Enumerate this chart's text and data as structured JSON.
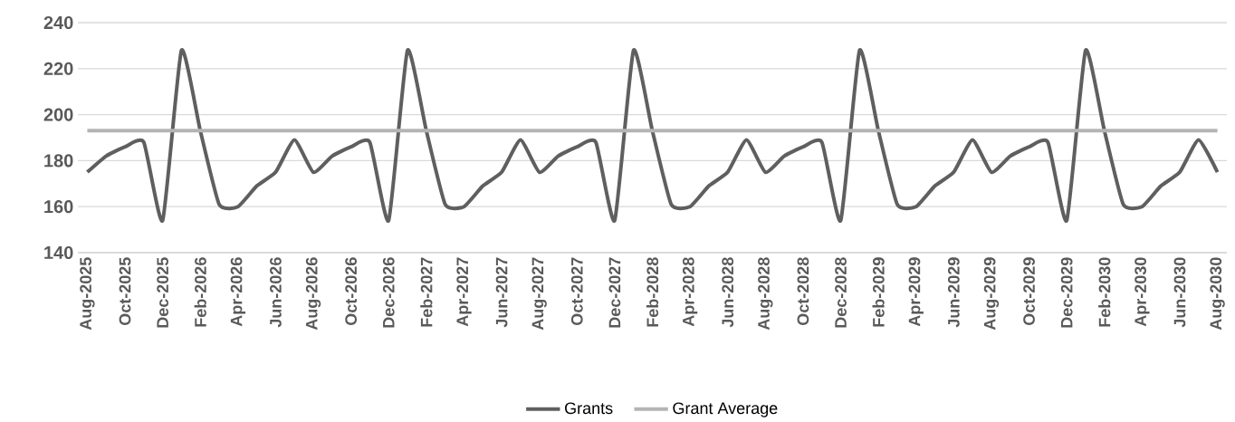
{
  "chart_data": {
    "type": "line",
    "categories": [
      "Aug-2025",
      null,
      "Oct-2025",
      null,
      "Dec-2025",
      null,
      "Feb-2026",
      null,
      "Apr-2026",
      null,
      "Jun-2026",
      null,
      "Aug-2026",
      null,
      "Oct-2026",
      null,
      "Dec-2026",
      null,
      "Feb-2027",
      null,
      "Apr-2027",
      null,
      "Jun-2027",
      null,
      "Aug-2027",
      null,
      "Oct-2027",
      null,
      "Dec-2027",
      null,
      "Feb-2028",
      null,
      "Apr-2028",
      null,
      "Jun-2028",
      null,
      "Aug-2028",
      null,
      "Oct-2028",
      null,
      "Dec-2028",
      null,
      "Feb-2029",
      null,
      "Apr-2029",
      null,
      "Jun-2029",
      null,
      "Aug-2029",
      null,
      "Oct-2029",
      null,
      "Dec-2029",
      null,
      "Feb-2030",
      null,
      "Apr-2030",
      null,
      "Jun-2030",
      null,
      "Aug-2030"
    ],
    "series": [
      {
        "name": "Grants",
        "color": "#5f5f5f",
        "values": [
          175,
          182,
          186,
          188,
          154,
          228,
          193,
          161,
          160,
          169,
          175,
          189,
          175,
          182,
          186,
          188,
          154,
          228,
          193,
          161,
          160,
          169,
          175,
          189,
          175,
          182,
          186,
          188,
          154,
          228,
          193,
          161,
          160,
          169,
          175,
          189,
          175,
          182,
          186,
          188,
          154,
          228,
          193,
          161,
          160,
          169,
          175,
          189,
          175,
          182,
          186,
          188,
          154,
          228,
          193,
          161,
          160,
          169,
          175,
          189,
          175
        ]
      },
      {
        "name": "Grant Average",
        "color": "#b4b4b4",
        "values": [
          193,
          193,
          193,
          193,
          193,
          193,
          193,
          193,
          193,
          193,
          193,
          193,
          193,
          193,
          193,
          193,
          193,
          193,
          193,
          193,
          193,
          193,
          193,
          193,
          193,
          193,
          193,
          193,
          193,
          193,
          193,
          193,
          193,
          193,
          193,
          193,
          193,
          193,
          193,
          193,
          193,
          193,
          193,
          193,
          193,
          193,
          193,
          193,
          193,
          193,
          193,
          193,
          193,
          193,
          193,
          193,
          193,
          193,
          193,
          193,
          193
        ]
      }
    ],
    "ylim": [
      140,
      240
    ],
    "yticks": [
      140,
      160,
      180,
      200,
      220,
      240
    ],
    "grid": "y",
    "legend": "bottom",
    "marker": "none",
    "line_style": "solid"
  }
}
